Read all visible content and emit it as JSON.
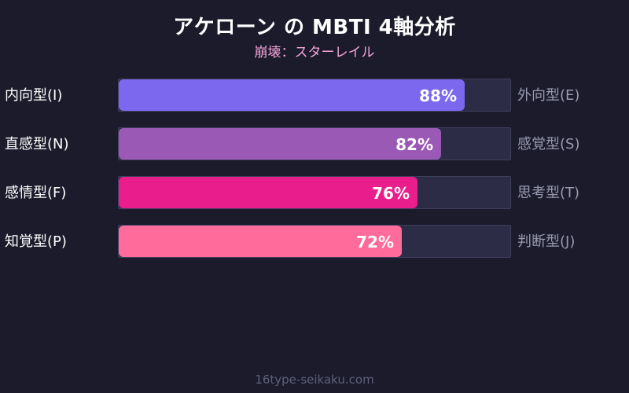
{
  "title": "アケローン の MBTI 4軸分析",
  "subtitle": "崩壊：スターレイル",
  "footer": "16type-seikaku.com",
  "chart_data": {
    "type": "bar",
    "orientation": "horizontal",
    "xlim": [
      0,
      100
    ],
    "rows": [
      {
        "left_label": "内向型(I)",
        "right_label": "外向型(E)",
        "value": 88,
        "value_label": "88%",
        "color": "#7b68ee"
      },
      {
        "left_label": "直感型(N)",
        "right_label": "感覚型(S)",
        "value": 82,
        "value_label": "82%",
        "color": "#9b59b6"
      },
      {
        "left_label": "感情型(F)",
        "right_label": "思考型(T)",
        "value": 76,
        "value_label": "76%",
        "color": "#e91e8c"
      },
      {
        "left_label": "知覚型(P)",
        "right_label": "判断型(J)",
        "value": 72,
        "value_label": "72%",
        "color": "#ff6b9a"
      }
    ],
    "track_color": "#2c2c47"
  }
}
